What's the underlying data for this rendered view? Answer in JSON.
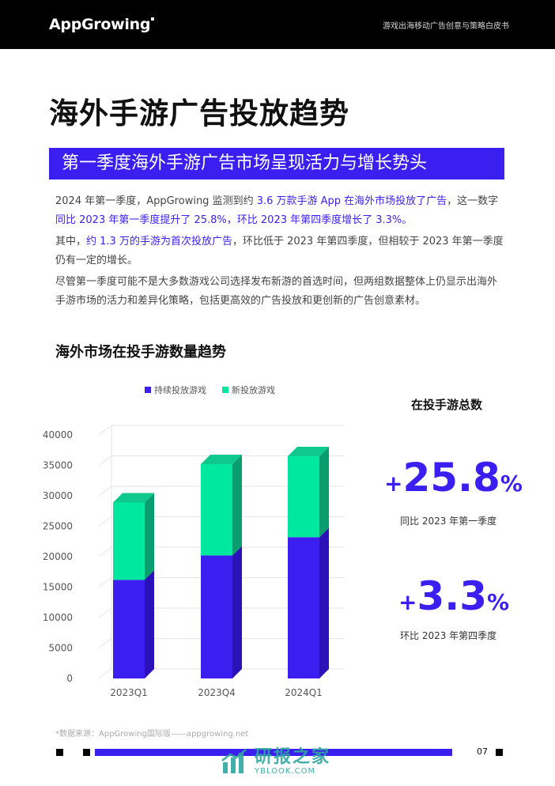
{
  "header": {
    "logo_text": "AppGrowing",
    "doc_title": "游戏出海移动广告创意与策略白皮书"
  },
  "page": {
    "main_title": "海外手游广告投放趋势",
    "banner": "第一季度海外手游广告市场呈现活力与增长势头",
    "p1_a": "2024 年第一季度，AppGrowing 监测到约 ",
    "p1_b": "3.6 万款手游 App 在海外市场投放了广告",
    "p1_c": "，这一数字",
    "p1_d": "同比 2023 年第一季度提升了 25.8%，环比 2023 年第四季度增长了 3.3%。",
    "p2_a": "其中，",
    "p2_b": "约 1.3 万的手游为首次投放广告",
    "p2_c": "，环比低于 2023 年第四季度，但相较于 2023 年第一季度仍有一定的增长。",
    "p3": "尽管第一季度可能不是大多数游戏公司选择发布新游的首选时间，但两组数据整体上仍显示出海外手游市场的活力和差异化策略，包括更高效的广告投放和更创新的广告创意素材。",
    "chart_title": "海外市场在投手游数量趋势",
    "source": "*数据来源：AppGrowing国际版——appgrowing.net",
    "page_number": "07"
  },
  "stats": {
    "title": "在投手游总数",
    "stat1_plus": "+",
    "stat1_value": "25.8",
    "stat1_pct": "%",
    "stat1_caption": "同比 2023 年第一季度",
    "stat2_plus": "+",
    "stat2_value": "3.3",
    "stat2_pct": "%",
    "stat2_caption": "环比 2023 年第四季度"
  },
  "watermark": {
    "main": "研报之家",
    "sub": "YBLOOK.COM"
  },
  "colors": {
    "brand": "#3a1ff0",
    "green": "#00e8a0"
  },
  "chart_data": {
    "type": "bar",
    "stacked": true,
    "categories": [
      "2023Q1",
      "2023Q4",
      "2024Q1"
    ],
    "series": [
      {
        "name": "持续投放游戏",
        "values": [
          16200,
          20200,
          23200
        ],
        "color": "#3a1ff0"
      },
      {
        "name": "新投放游戏",
        "values": [
          12700,
          15000,
          13300
        ],
        "color": "#00e8a0"
      }
    ],
    "ylim": [
      0,
      40000
    ],
    "yticks": [
      "0",
      "5000",
      "10000",
      "15000",
      "20000",
      "25000",
      "30000",
      "35000",
      "40000"
    ],
    "legend": "top",
    "grid": true
  }
}
